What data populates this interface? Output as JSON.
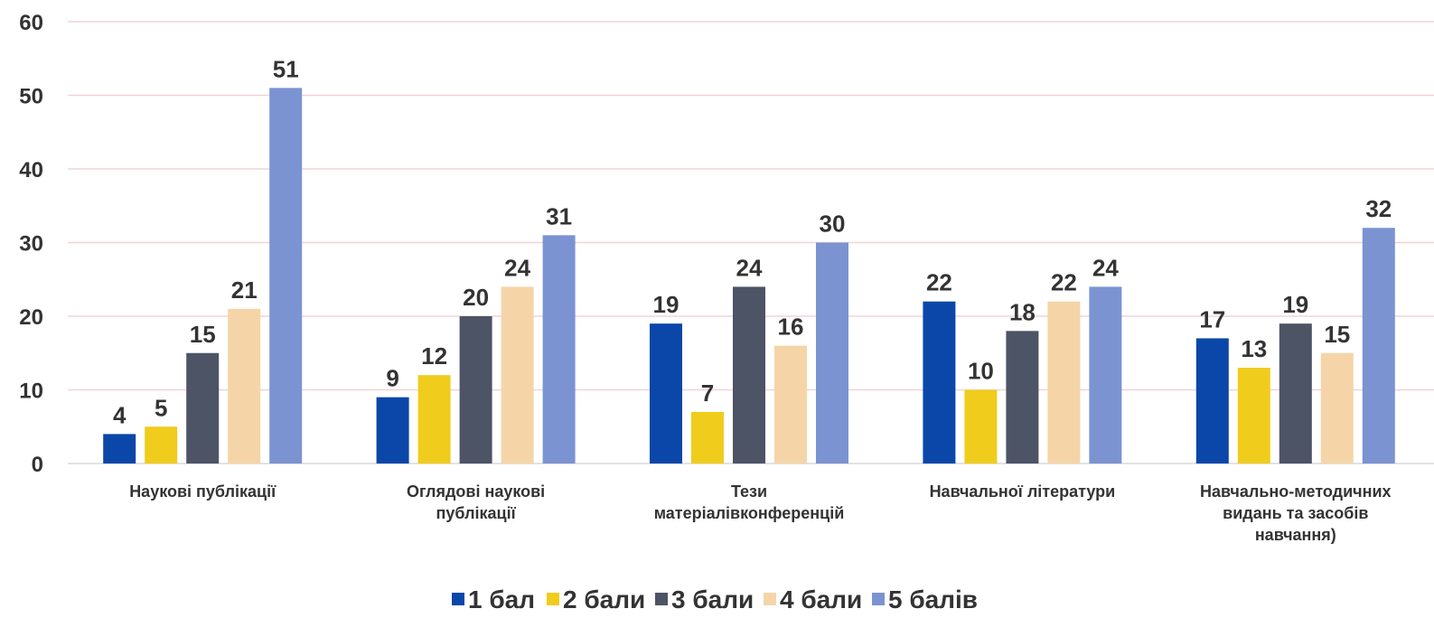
{
  "chart_data": {
    "type": "bar",
    "categories": [
      "Наукові публікації",
      "Оглядові наукові\nпублікації",
      "Тези\nматеріалівконференцій",
      "Навчальної літератури",
      "Навчально-методичних\nвидань та засобів\nнавчання)"
    ],
    "series": [
      {
        "name": "1 бал",
        "color": "#0a47a9",
        "values": [
          4,
          9,
          19,
          22,
          17
        ]
      },
      {
        "name": "2 бали",
        "color": "#f0cc1c",
        "values": [
          5,
          12,
          7,
          10,
          13
        ]
      },
      {
        "name": "3 бали",
        "color": "#4d5466",
        "values": [
          15,
          20,
          24,
          18,
          19
        ]
      },
      {
        "name": "4 бали",
        "color": "#f5d5a8",
        "values": [
          21,
          24,
          16,
          22,
          15
        ]
      },
      {
        "name": "5 балів",
        "color": "#7b93d1",
        "values": [
          51,
          31,
          30,
          24,
          32
        ]
      }
    ],
    "ylim": [
      0,
      60
    ],
    "yticks": [
      0,
      10,
      20,
      30,
      40,
      50,
      60
    ],
    "grid": true,
    "legend": "bottom"
  }
}
